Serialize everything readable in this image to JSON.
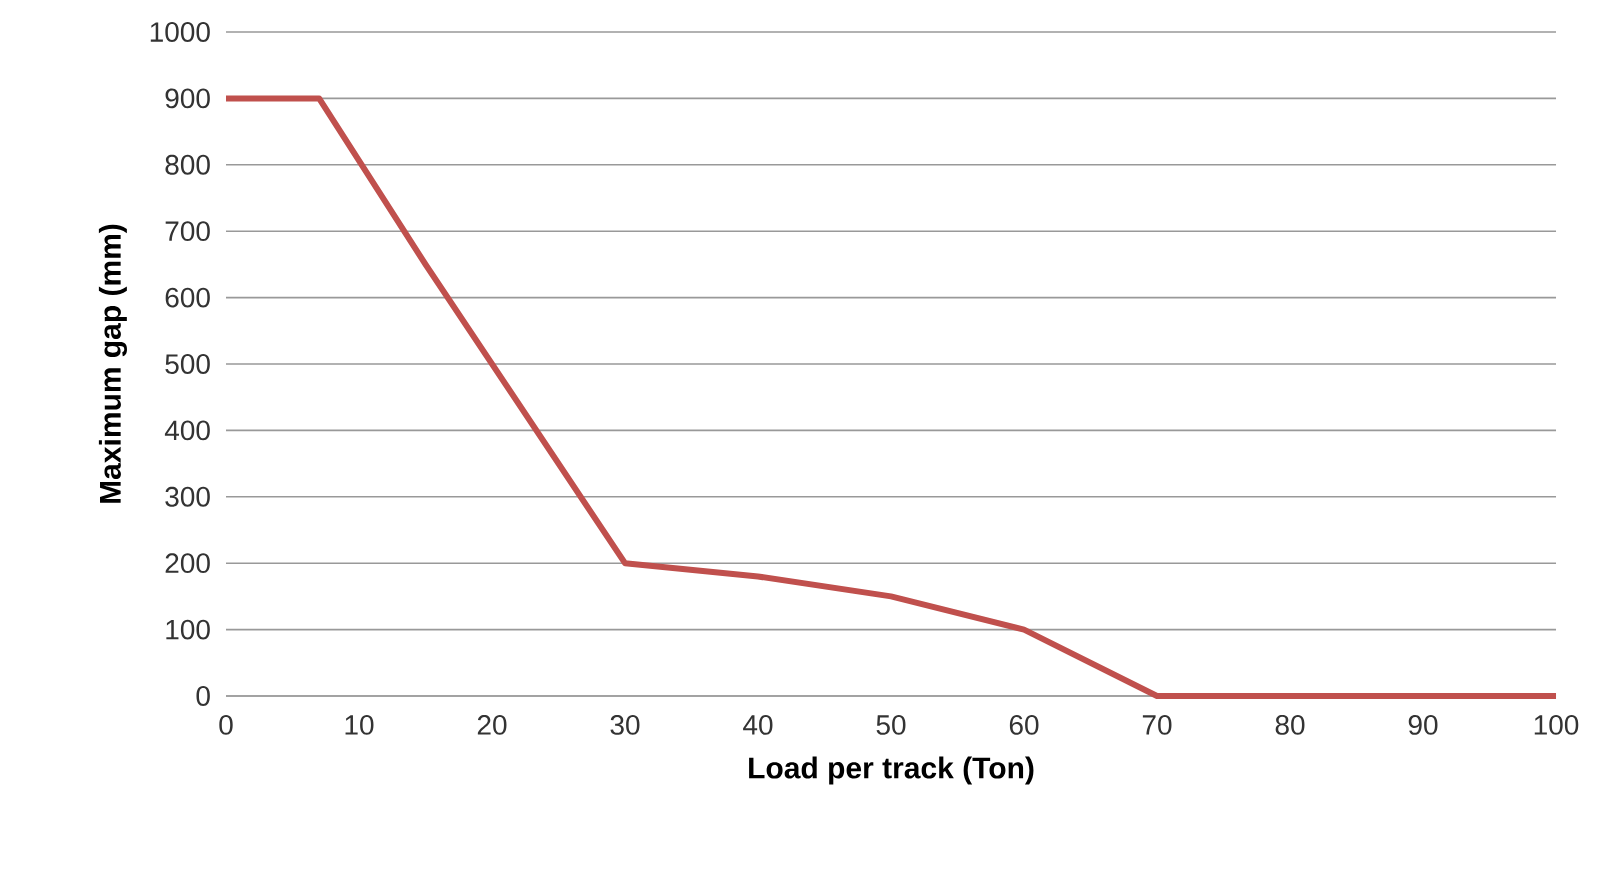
{
  "chart_data": {
    "type": "line",
    "xlabel": "Load per track (Ton)",
    "ylabel": "Maximum gap (mm)",
    "xlim": [
      0,
      100
    ],
    "ylim": [
      0,
      1000
    ],
    "xticks": [
      0,
      10,
      20,
      30,
      40,
      50,
      60,
      70,
      80,
      90,
      100
    ],
    "yticks": [
      0,
      100,
      200,
      300,
      400,
      500,
      600,
      700,
      800,
      900,
      1000
    ],
    "grid": "y",
    "legend": false,
    "marker": "none",
    "line_style": "solid",
    "x": [
      0,
      7,
      15,
      30,
      40,
      50,
      60,
      70,
      100
    ],
    "series": [
      {
        "color": "#c0504d",
        "values": [
          900,
          900,
          650,
          200,
          180,
          150,
          100,
          0,
          0
        ]
      }
    ]
  }
}
